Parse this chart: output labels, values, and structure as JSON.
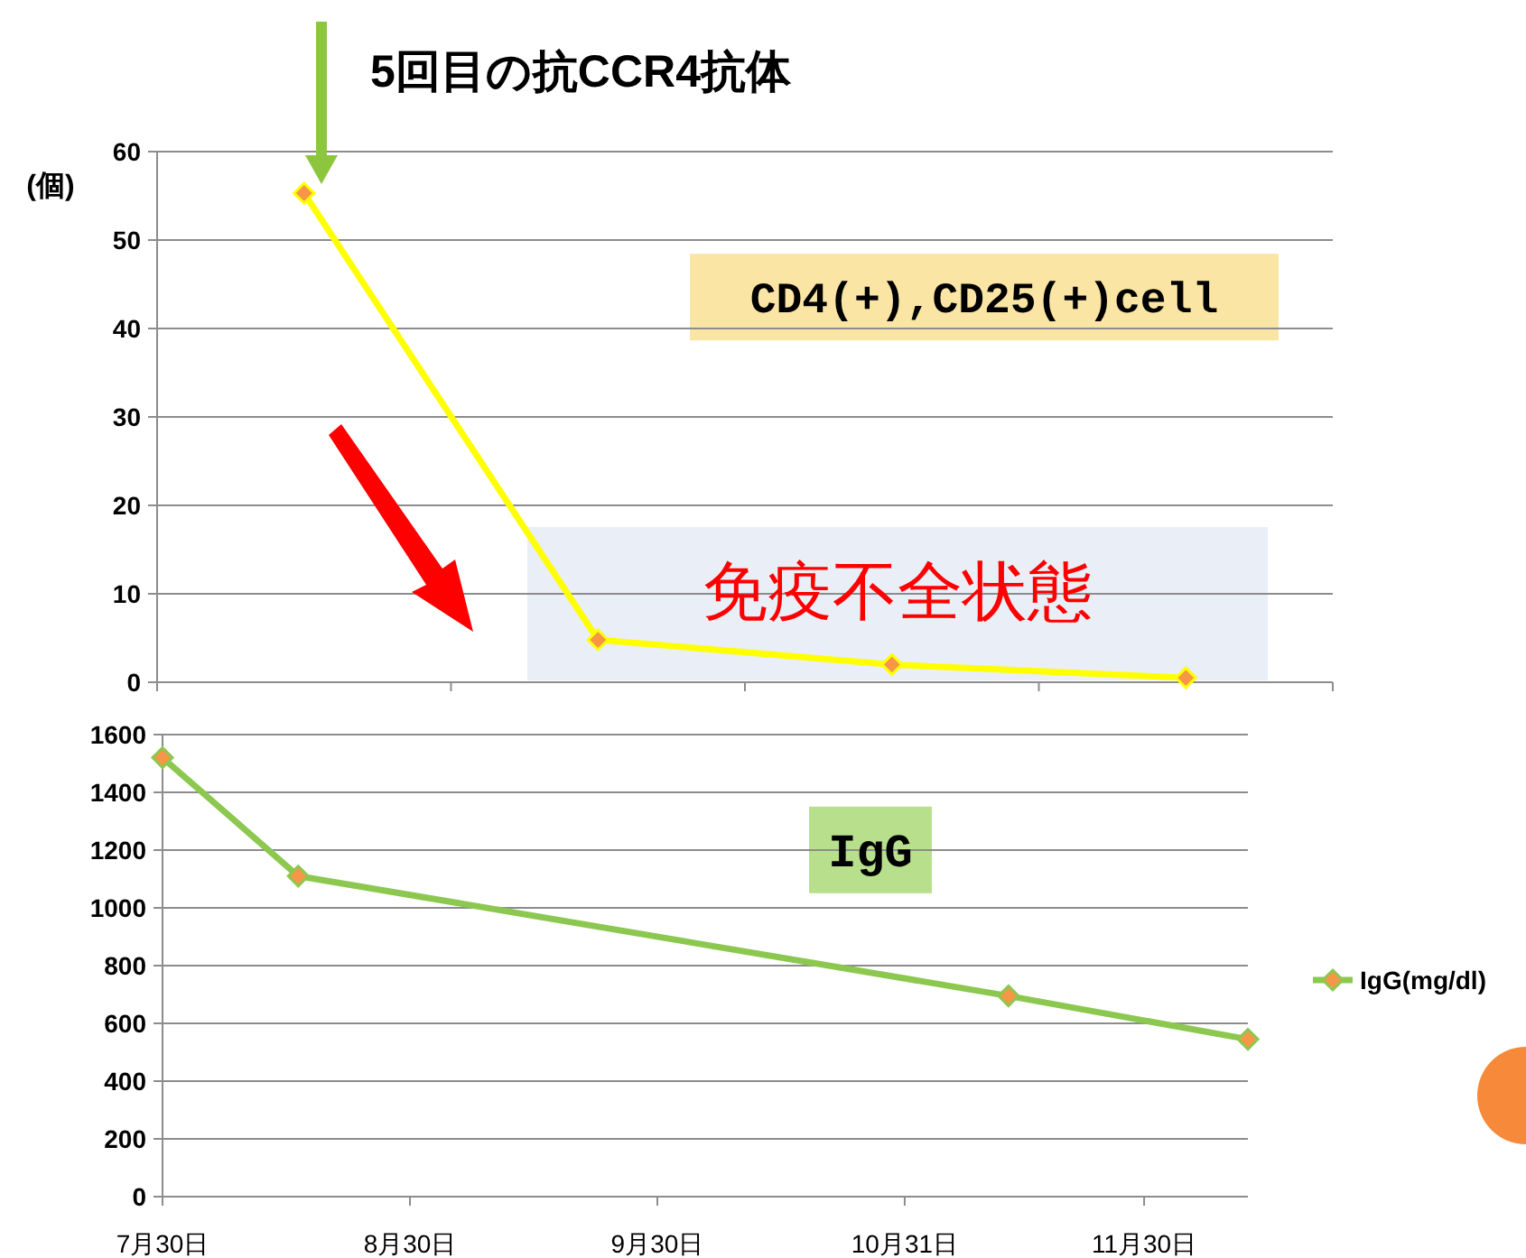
{
  "chart_data": [
    {
      "type": "line",
      "ylabel": "(個)",
      "categories": [
        null,
        null,
        null,
        null
      ],
      "series": [
        {
          "color": "#ffff00",
          "values": [
            55.3,
            4.8,
            2,
            0.5
          ]
        }
      ],
      "ylim": [
        0,
        60
      ],
      "yticks": [
        0,
        10,
        20,
        30,
        40,
        50,
        60
      ],
      "grid": "y",
      "marker": "diamond",
      "line_style": "solid",
      "tick_labels": "y",
      "annotations": [
        "5回目の抗CCR4抗体",
        "CD4(+),CD25(+)cell",
        "免疫不全状態"
      ]
    },
    {
      "type": "line",
      "x": [
        "--07-30",
        "--08-16",
        "--11-13",
        "--12-13"
      ],
      "series": [
        {
          "name": "IgG(mg/dl)",
          "color": "#8cc850",
          "values": [
            1520,
            1110,
            695,
            545
          ]
        }
      ],
      "xlim": [
        "--07-30",
        "--12-13"
      ],
      "xticks": [
        {
          "value": "--07-30",
          "label": "7月30日"
        },
        {
          "value": "--08-30",
          "label": "8月30日"
        },
        {
          "value": "--09-30",
          "label": "9月30日"
        },
        {
          "value": "--10-31",
          "label": "10月31日"
        },
        {
          "value": "--11-30",
          "label": "11月30日"
        }
      ],
      "ylim": [
        0,
        1600
      ],
      "yticks": [
        0,
        200,
        400,
        600,
        800,
        1000,
        1200,
        1400,
        1600
      ],
      "grid": "y",
      "marker": "diamond",
      "line_style": "solid",
      "legend": "right",
      "annotations": [
        "IgG"
      ]
    }
  ]
}
